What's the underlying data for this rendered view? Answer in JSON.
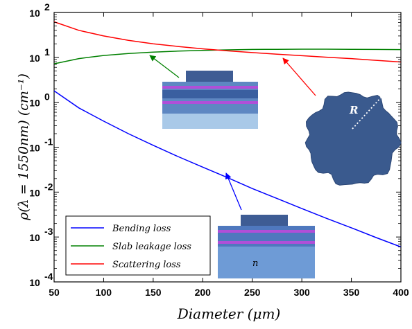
{
  "chart_data": {
    "type": "line",
    "xlabel": "Diameter (μm)",
    "ylabel": "ρ(λ = 1550nm) (cm⁻¹)",
    "xlim": [
      50,
      400
    ],
    "ylim": [
      0.0001,
      100
    ],
    "yscale": "log",
    "grid": false,
    "legend_position": "bottom-left",
    "x_ticks": [
      50,
      100,
      150,
      200,
      250,
      300,
      350,
      400
    ],
    "y_ticks": [
      {
        "value": 0.0001,
        "base": "10",
        "exp": "-4"
      },
      {
        "value": 0.001,
        "base": "10",
        "exp": "-3"
      },
      {
        "value": 0.01,
        "base": "10",
        "exp": "-2"
      },
      {
        "value": 0.1,
        "base": "10",
        "exp": "-1"
      },
      {
        "value": 1,
        "base": "10",
        "exp": "0"
      },
      {
        "value": 10,
        "base": "10",
        "exp": "1"
      },
      {
        "value": 100,
        "base": "10",
        "exp": "2"
      }
    ],
    "series": [
      {
        "name": "Bending loss",
        "color": "#0000ff",
        "x": [
          50,
          75,
          100,
          125,
          150,
          175,
          200,
          225,
          250,
          275,
          300,
          325,
          350,
          375,
          400
        ],
        "y": [
          1.8,
          0.75,
          0.38,
          0.2,
          0.11,
          0.062,
          0.036,
          0.021,
          0.012,
          0.0072,
          0.0043,
          0.0026,
          0.0016,
          0.00097,
          0.0006
        ]
      },
      {
        "name": "Slab leakage loss",
        "color": "#008000",
        "x": [
          50,
          75,
          100,
          125,
          150,
          175,
          200,
          225,
          250,
          275,
          300,
          325,
          350,
          375,
          400
        ],
        "y": [
          7.2,
          9.4,
          11.0,
          12.2,
          13.1,
          13.8,
          14.3,
          14.7,
          15.0,
          15.1,
          15.2,
          15.2,
          15.1,
          15.0,
          14.9
        ]
      },
      {
        "name": "Scattering loss",
        "color": "#ff0000",
        "x": [
          50,
          75,
          100,
          125,
          150,
          175,
          200,
          225,
          250,
          275,
          300,
          325,
          350,
          375,
          400
        ],
        "y": [
          62,
          40,
          30,
          24,
          20,
          17.5,
          15.5,
          14.0,
          12.8,
          11.8,
          10.9,
          10.1,
          9.4,
          8.6,
          7.9
        ]
      }
    ],
    "annotations": [
      {
        "text": "R",
        "target": "disk-radius"
      },
      {
        "text": "n",
        "target": "substrate-index"
      }
    ]
  }
}
